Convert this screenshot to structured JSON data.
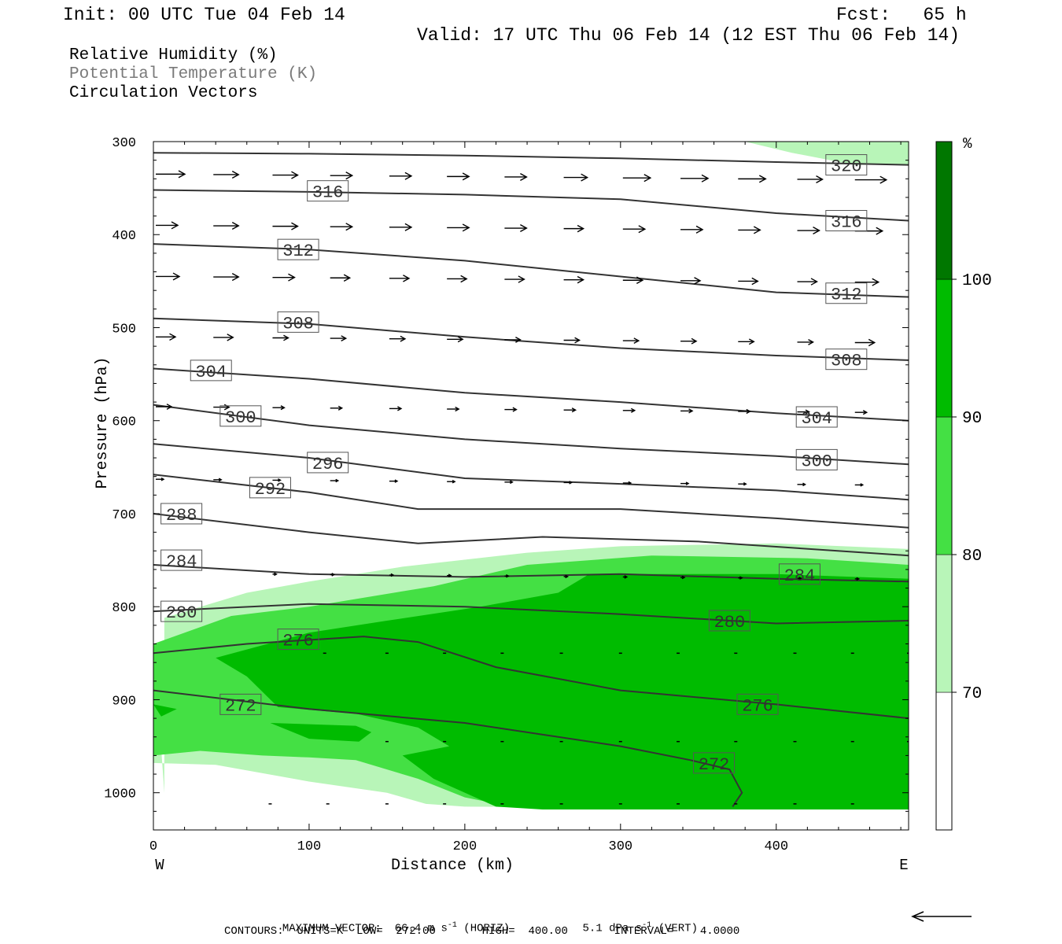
{
  "header": {
    "init": "Init: 00 UTC Tue 04 Feb 14",
    "fcst": "Fcst:   65 h",
    "valid": "Valid: 17 UTC Thu 06 Feb 14 (12 EST Thu 06 Feb 14)"
  },
  "legend": {
    "line1": "Relative Humidity (%)",
    "line2": "Potential Temperature (K)",
    "line3": "Circulation Vectors"
  },
  "footer": {
    "max_vector_label": "MAXIMUM VECTOR:",
    "max_vector_horiz": "66.4 m s",
    "horiz_tag": "(HORIZ)",
    "max_vector_vert": "5.1 dPa s",
    "vert_tag": "(VERT)",
    "exponent": "-1",
    "contours": "CONTOURS:  UNITS=K  LOW=  272.00       HIGH=  400.00       INTERVAL=    4.0000"
  },
  "colors": {
    "rh_70_80": "#b8f5b8",
    "rh_80_90": "#44e044",
    "rh_90_100": "#00bb00",
    "rh_100plus": "#007700",
    "theta_line": "#333333",
    "label_box_edge": "#555555"
  },
  "chart_data": {
    "type": "cross-section",
    "xlabel": "Distance (km)",
    "ylabel": "Pressure (hPa)",
    "xlim": [
      0,
      485
    ],
    "ylim": [
      1040,
      300
    ],
    "x_ticks": [
      0,
      100,
      200,
      300,
      400
    ],
    "y_ticks": [
      300,
      400,
      500,
      600,
      700,
      800,
      900,
      1000
    ],
    "x_end_labels": {
      "left": "W",
      "right": "E"
    },
    "colorbar": {
      "unit": "%",
      "levels": [
        70,
        80,
        90,
        100
      ],
      "range": [
        60,
        110
      ],
      "colors": [
        "#ffffff",
        "#b8f5b8",
        "#44e044",
        "#00bb00",
        "#007700"
      ]
    },
    "rh_regions": [
      {
        "level": 70,
        "points": [
          [
            7,
            1000
          ],
          [
            7,
            812
          ],
          [
            60,
            785
          ],
          [
            100,
            773
          ],
          [
            160,
            757
          ],
          [
            240,
            742
          ],
          [
            300,
            735
          ],
          [
            400,
            732
          ],
          [
            485,
            738
          ],
          [
            485,
            1015
          ],
          [
            380,
            1016
          ],
          [
            300,
            1016
          ],
          [
            200,
            1015
          ],
          [
            175,
            1012
          ],
          [
            150,
            1000
          ],
          [
            100,
            988
          ],
          [
            40,
            970
          ],
          [
            0,
            968
          ],
          [
            0,
            835
          ]
        ]
      },
      {
        "level": 80,
        "points": [
          [
            0,
            960
          ],
          [
            0,
            840
          ],
          [
            50,
            810
          ],
          [
            100,
            800
          ],
          [
            180,
            778
          ],
          [
            240,
            755
          ],
          [
            320,
            745
          ],
          [
            420,
            748
          ],
          [
            485,
            755
          ],
          [
            485,
            1015
          ],
          [
            380,
            1018
          ],
          [
            300,
            1018
          ],
          [
            230,
            1015
          ],
          [
            200,
            1005
          ],
          [
            170,
            985
          ],
          [
            130,
            965
          ],
          [
            100,
            962
          ],
          [
            70,
            960
          ],
          [
            30,
            955
          ]
        ]
      },
      {
        "level": 90,
        "points": [
          [
            40,
            855
          ],
          [
            100,
            828
          ],
          [
            150,
            815
          ],
          [
            210,
            800
          ],
          [
            260,
            785
          ],
          [
            280,
            765
          ],
          [
            400,
            765
          ],
          [
            485,
            770
          ],
          [
            485,
            1018
          ],
          [
            250,
            1018
          ],
          [
            220,
            1015
          ],
          [
            180,
            985
          ],
          [
            160,
            960
          ],
          [
            190,
            950
          ],
          [
            170,
            930
          ],
          [
            130,
            915
          ],
          [
            80,
            908
          ],
          [
            60,
            875
          ]
        ]
      },
      {
        "level": 90,
        "points": [
          [
            75,
            925
          ],
          [
            130,
            928
          ],
          [
            140,
            935
          ],
          [
            132,
            945
          ],
          [
            100,
            942
          ]
        ]
      },
      {
        "level": 90,
        "points": [
          [
            0,
            905
          ],
          [
            15,
            910
          ],
          [
            5,
            918
          ]
        ]
      }
    ],
    "theta_contours": [
      {
        "value": 320,
        "points": [
          [
            0,
            312
          ],
          [
            100,
            313
          ],
          [
            200,
            315
          ],
          [
            300,
            318
          ],
          [
            400,
            322
          ],
          [
            485,
            325
          ]
        ],
        "labels": [
          [
            445,
            325
          ]
        ]
      },
      {
        "value": 316,
        "points": [
          [
            0,
            352
          ],
          [
            100,
            354
          ],
          [
            200,
            357
          ],
          [
            300,
            362
          ],
          [
            400,
            377
          ],
          [
            485,
            385
          ]
        ],
        "labels": [
          [
            112,
            353
          ],
          [
            445,
            385
          ]
        ]
      },
      {
        "value": 312,
        "points": [
          [
            0,
            410
          ],
          [
            100,
            416
          ],
          [
            200,
            428
          ],
          [
            300,
            445
          ],
          [
            400,
            462
          ],
          [
            485,
            467
          ]
        ],
        "labels": [
          [
            93,
            416
          ],
          [
            445,
            463
          ]
        ]
      },
      {
        "value": 308,
        "points": [
          [
            0,
            490
          ],
          [
            100,
            496
          ],
          [
            200,
            510
          ],
          [
            300,
            522
          ],
          [
            400,
            530
          ],
          [
            485,
            535
          ]
        ],
        "labels": [
          [
            93,
            494
          ],
          [
            445,
            534
          ]
        ]
      },
      {
        "value": 304,
        "points": [
          [
            0,
            544
          ],
          [
            100,
            555
          ],
          [
            200,
            570
          ],
          [
            300,
            580
          ],
          [
            400,
            592
          ],
          [
            485,
            600
          ]
        ],
        "labels": [
          [
            37,
            546
          ],
          [
            426,
            596
          ]
        ]
      },
      {
        "value": 300,
        "points": [
          [
            0,
            583
          ],
          [
            100,
            605
          ],
          [
            200,
            620
          ],
          [
            300,
            630
          ],
          [
            400,
            638
          ],
          [
            485,
            647
          ]
        ],
        "labels": [
          [
            56,
            595
          ],
          [
            426,
            642
          ]
        ]
      },
      {
        "value": 296,
        "points": [
          [
            0,
            625
          ],
          [
            100,
            640
          ],
          [
            200,
            662
          ],
          [
            300,
            668
          ],
          [
            400,
            675
          ],
          [
            485,
            685
          ]
        ],
        "labels": [
          [
            112,
            645
          ]
        ]
      },
      {
        "value": 292,
        "points": [
          [
            0,
            658
          ],
          [
            100,
            677
          ],
          [
            170,
            695
          ],
          [
            300,
            695
          ],
          [
            400,
            705
          ],
          [
            485,
            715
          ]
        ],
        "labels": [
          [
            75,
            672
          ]
        ]
      },
      {
        "value": 288,
        "points": [
          [
            0,
            700
          ],
          [
            100,
            720
          ],
          [
            170,
            732
          ],
          [
            250,
            725
          ],
          [
            350,
            730
          ],
          [
            485,
            745
          ]
        ],
        "labels": [
          [
            18,
            700
          ]
        ]
      },
      {
        "value": 284,
        "points": [
          [
            0,
            755
          ],
          [
            100,
            765
          ],
          [
            200,
            768
          ],
          [
            300,
            765
          ],
          [
            400,
            770
          ],
          [
            485,
            773
          ]
        ],
        "labels": [
          [
            18,
            750
          ],
          [
            415,
            765
          ]
        ]
      },
      {
        "value": 280,
        "points": [
          [
            0,
            805
          ],
          [
            100,
            797
          ],
          [
            200,
            800
          ],
          [
            300,
            808
          ],
          [
            400,
            818
          ],
          [
            485,
            815
          ]
        ],
        "labels": [
          [
            18,
            805
          ],
          [
            370,
            815
          ]
        ]
      },
      {
        "value": 276,
        "points": [
          [
            0,
            850
          ],
          [
            60,
            840
          ],
          [
            135,
            832
          ],
          [
            170,
            838
          ],
          [
            220,
            865
          ],
          [
            300,
            890
          ],
          [
            400,
            905
          ],
          [
            485,
            920
          ]
        ],
        "labels": [
          [
            93,
            835
          ],
          [
            388,
            905
          ]
        ]
      },
      {
        "value": 272,
        "points": [
          [
            0,
            890
          ],
          [
            100,
            910
          ],
          [
            200,
            925
          ],
          [
            300,
            950
          ],
          [
            345,
            965
          ],
          [
            370,
            975
          ],
          [
            378,
            1000
          ],
          [
            372,
            1015
          ]
        ],
        "labels": [
          [
            56,
            905
          ],
          [
            360,
            968
          ]
        ]
      }
    ],
    "circulation_vectors": [
      {
        "p": 335,
        "x": [
          0,
          37,
          75,
          112,
          150,
          187,
          224,
          262,
          300,
          337,
          374,
          412,
          449
        ],
        "len": [
          37,
          32,
          32,
          28,
          28,
          28,
          28,
          30,
          35,
          35,
          35,
          32,
          40
        ]
      },
      {
        "p": 390,
        "x": [
          0,
          37,
          75,
          112,
          150,
          187,
          224,
          262,
          300,
          337,
          374,
          412,
          449
        ],
        "len": [
          28,
          32,
          32,
          28,
          28,
          28,
          28,
          25,
          28,
          28,
          28,
          28,
          35
        ]
      },
      {
        "p": 445,
        "x": [
          0,
          37,
          75,
          112,
          150,
          187,
          224,
          262,
          300,
          337,
          374,
          412,
          449
        ],
        "len": [
          30,
          32,
          28,
          25,
          25,
          25,
          25,
          25,
          25,
          25,
          25,
          25,
          30
        ]
      },
      {
        "p": 510,
        "x": [
          0,
          37,
          75,
          112,
          150,
          187,
          224,
          262,
          300,
          337,
          374,
          412,
          449
        ],
        "len": [
          25,
          25,
          20,
          20,
          20,
          20,
          20,
          20,
          20,
          20,
          20,
          20,
          25
        ]
      },
      {
        "p": 585,
        "x": [
          0,
          37,
          75,
          112,
          150,
          187,
          224,
          262,
          300,
          337,
          374,
          412,
          449
        ],
        "len": [
          20,
          20,
          15,
          15,
          15,
          15,
          15,
          15,
          15,
          15,
          15,
          15,
          15
        ]
      },
      {
        "p": 663,
        "x": [
          0,
          37,
          75,
          112,
          150,
          187,
          224,
          262,
          300,
          337,
          374,
          412,
          449
        ],
        "len": [
          10,
          10,
          10,
          10,
          10,
          10,
          10,
          10,
          10,
          10,
          10,
          10,
          10
        ]
      },
      {
        "p": 765,
        "x": [
          75,
          112,
          150,
          187,
          224,
          262,
          300,
          337,
          374,
          412,
          449
        ],
        "len": [
          5,
          5,
          5,
          5,
          5,
          5,
          5,
          5,
          5,
          5,
          5
        ]
      }
    ],
    "max_vector_arrow": {
      "direction": "west"
    }
  }
}
